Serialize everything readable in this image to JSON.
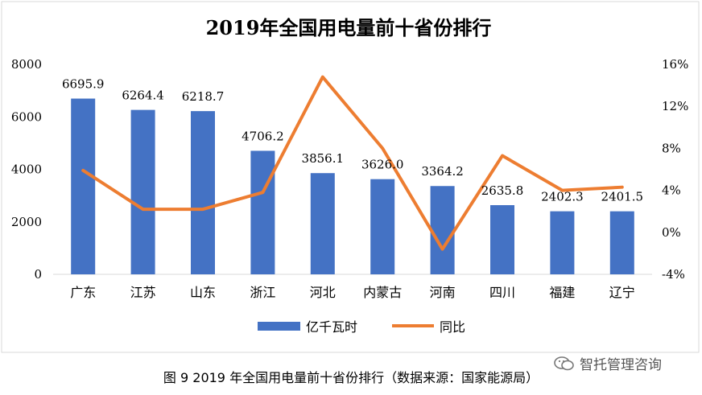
{
  "chart_data": {
    "type": "bar+line",
    "title": "2019年全国用电量前十省份排行",
    "categories": [
      "广东",
      "江苏",
      "山东",
      "浙江",
      "河北",
      "内蒙古",
      "河南",
      "四川",
      "福建",
      "辽宁"
    ],
    "series": [
      {
        "name": "亿千瓦时",
        "type": "bar",
        "axis": "left",
        "color": "#4472C4",
        "values": [
          6695.9,
          6264.4,
          6218.7,
          4706.2,
          3856.1,
          3626.0,
          3364.2,
          2635.8,
          2402.3,
          2401.5
        ],
        "labels": [
          "6695.9",
          "6264.4",
          "6218.7",
          "4706.2",
          "3856.1",
          "3626.0",
          "3364.2",
          "2635.8",
          "2402.3",
          "2401.5"
        ]
      },
      {
        "name": "同比",
        "type": "line",
        "axis": "right",
        "color": "#ED7D31",
        "values": [
          5.9,
          2.2,
          2.2,
          3.8,
          14.8,
          8.0,
          -1.6,
          7.3,
          4.0,
          4.3
        ]
      }
    ],
    "left_axis": {
      "ylim": [
        0,
        8000
      ],
      "ticks": [
        "0",
        "2000",
        "4000",
        "6000",
        "8000"
      ]
    },
    "right_axis": {
      "ylim": [
        -4,
        16
      ],
      "ticks": [
        "-4%",
        "0%",
        "4%",
        "8%",
        "12%",
        "16%"
      ]
    },
    "legend_position": "bottom",
    "grid": false
  },
  "caption": "图 9 2019 年全国用电量前十省份排行（数据来源：国家能源局）",
  "watermark": {
    "text": "智托管理咨询",
    "icon": "wechat-icon"
  }
}
